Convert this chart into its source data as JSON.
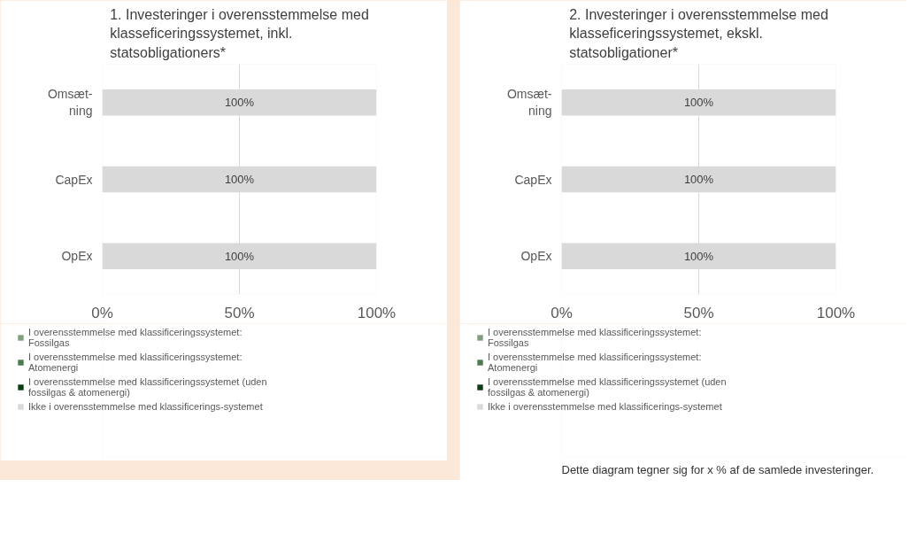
{
  "chart_data": [
    {
      "type": "bar",
      "orientation": "horizontal",
      "stacked": true,
      "title": "1. Investeringer i overensstemmelse med\nklasseficeringssystemet, inkl.\nstatsobligationers*",
      "categories": [
        "Omsæt-\nning",
        "CapEx",
        "OpEx"
      ],
      "xlim": [
        0,
        100
      ],
      "xticks": [
        {
          "value": 0,
          "label": "0%"
        },
        {
          "value": 50,
          "label": "50%"
        },
        {
          "value": 100,
          "label": "100%"
        }
      ],
      "grid": "x",
      "legend": "bottom",
      "series": [
        {
          "name": "I overensstemmelse med klassificeringssystemet: Fossilgas",
          "color": "#7f9f7f",
          "values": [
            0,
            0,
            0
          ]
        },
        {
          "name": "I overensstemmelse med klassificeringssystemet: Atomenergi",
          "color": "#4f7a4f",
          "values": [
            0,
            0,
            0
          ]
        },
        {
          "name": "I overensstemmelse med klassificeringssystemet (uden fossilgas & atomenergi)",
          "color": "#0d3d12",
          "values": [
            0,
            0,
            0
          ]
        },
        {
          "name": "Ikke i overensstemmelse med klassificerings-systemet",
          "color": "#d9d9d9",
          "values": [
            100,
            100,
            100
          ],
          "value_labels": [
            "100%",
            "100%",
            "100%"
          ]
        }
      ]
    },
    {
      "type": "bar",
      "orientation": "horizontal",
      "stacked": true,
      "title": "2. Investeringer i overensstemmelse med\nklasseficeringssystemet, ekskl.\nstatsobligationer*",
      "categories": [
        "Omsæt-\nning",
        "CapEx",
        "OpEx"
      ],
      "xlim": [
        0,
        100
      ],
      "xticks": [
        {
          "value": 0,
          "label": "0%"
        },
        {
          "value": 50,
          "label": "50%"
        },
        {
          "value": 100,
          "label": "100%"
        }
      ],
      "grid": "x",
      "legend": "bottom",
      "annotations": [
        "Dette diagram tegner sig for x % af de samlede investeringer."
      ],
      "series": [
        {
          "name": "I overensstemmelse med klassificeringssystemet: Fossilgas",
          "color": "#7f9f7f",
          "values": [
            0,
            0,
            0
          ]
        },
        {
          "name": "I overensstemmelse med klassificeringssystemet: Atomenergi",
          "color": "#4f7a4f",
          "values": [
            0,
            0,
            0
          ]
        },
        {
          "name": "I overensstemmelse med klassificeringssystemet (uden fossilgas & atomenergi)",
          "color": "#0d3d12",
          "values": [
            0,
            0,
            0
          ]
        },
        {
          "name": "Ikke i overensstemmelse med klassificerings-systemet",
          "color": "#d9d9d9",
          "values": [
            100,
            100,
            100
          ],
          "value_labels": [
            "100%",
            "100%",
            "100%"
          ]
        }
      ]
    }
  ]
}
